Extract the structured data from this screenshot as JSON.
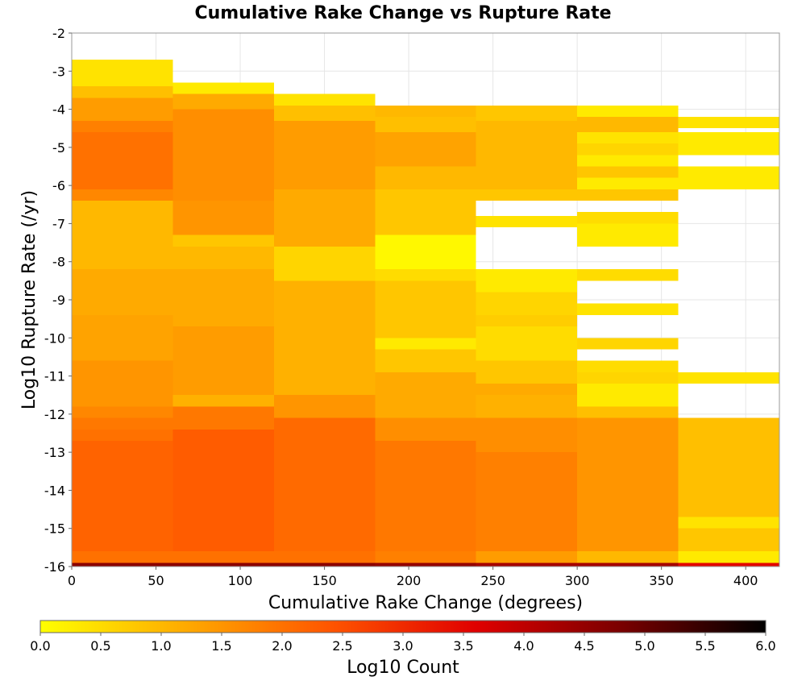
{
  "chart_data": {
    "type": "heatmap",
    "title": "Cumulative Rake Change vs Rupture Rate",
    "xlabel": "Cumulative Rake Change (degrees)",
    "ylabel": "Log10 Rupture Rate (/yr)",
    "xlim": [
      0,
      420
    ],
    "ylim": [
      -16,
      -2
    ],
    "x_ticks": [
      "0",
      "50",
      "100",
      "150",
      "200",
      "250",
      "300",
      "350",
      "400"
    ],
    "x_tick_values": [
      0,
      50,
      100,
      150,
      200,
      250,
      300,
      350,
      400
    ],
    "y_ticks": [
      "-2",
      "-3",
      "-4",
      "-5",
      "-6",
      "-7",
      "-8",
      "-9",
      "-10",
      "-11",
      "-12",
      "-13",
      "-14",
      "-15",
      "-16"
    ],
    "y_tick_values": [
      -2,
      -3,
      -4,
      -5,
      -6,
      -7,
      -8,
      -9,
      -10,
      -11,
      -12,
      -13,
      -14,
      -15,
      -16
    ],
    "grid": true,
    "x_bin_width": 60,
    "y_bin_height": 0.3,
    "colorbar": {
      "label": "Log10 Count",
      "range": [
        0,
        6
      ],
      "ticks": [
        "0.0",
        "0.5",
        "1.0",
        "1.5",
        "2.0",
        "2.5",
        "3.0",
        "3.5",
        "4.0",
        "4.5",
        "5.0",
        "5.5",
        "6.0"
      ],
      "tick_values": [
        0,
        0.5,
        1,
        1.5,
        2,
        2.5,
        3,
        3.5,
        4,
        4.5,
        5,
        5.5,
        6
      ],
      "stops": [
        "#ffff00",
        "#ffaa00",
        "#ff5500",
        "#e00000",
        "#7a0000",
        "#000000"
      ]
    },
    "columns": [
      {
        "x_range": [
          0,
          60
        ],
        "bins": [
          {
            "y": [
              -16,
              -15.9
            ],
            "v": 4.6
          },
          {
            "y": [
              -15.9,
              -15.6
            ],
            "v": 2.0
          },
          {
            "y": [
              -15.6,
              -12.7
            ],
            "v": 2.2
          },
          {
            "y": [
              -12.7,
              -12.4
            ],
            "v": 2.0
          },
          {
            "y": [
              -12.4,
              -12.1
            ],
            "v": 1.9
          },
          {
            "y": [
              -12.1,
              -11.8
            ],
            "v": 1.7
          },
          {
            "y": [
              -11.8,
              -10.6
            ],
            "v": 1.5
          },
          {
            "y": [
              -10.6,
              -9.4
            ],
            "v": 1.3
          },
          {
            "y": [
              -9.4,
              -8.2
            ],
            "v": 1.2
          },
          {
            "y": [
              -8.2,
              -6.4
            ],
            "v": 1.0
          },
          {
            "y": [
              -6.4,
              -6.1
            ],
            "v": 1.7
          },
          {
            "y": [
              -6.1,
              -4.6
            ],
            "v": 2.0
          },
          {
            "y": [
              -4.6,
              -4.3
            ],
            "v": 1.8
          },
          {
            "y": [
              -4.3,
              -3.7
            ],
            "v": 1.4
          },
          {
            "y": [
              -3.7,
              -3.4
            ],
            "v": 0.9
          },
          {
            "y": [
              -3.4,
              -2.7
            ],
            "v": 0.4
          }
        ]
      },
      {
        "x_range": [
          60,
          120
        ],
        "bins": [
          {
            "y": [
              -16,
              -15.9
            ],
            "v": 4.6
          },
          {
            "y": [
              -15.9,
              -15.6
            ],
            "v": 2.0
          },
          {
            "y": [
              -15.6,
              -12.4
            ],
            "v": 2.3
          },
          {
            "y": [
              -12.4,
              -11.8
            ],
            "v": 1.9
          },
          {
            "y": [
              -11.8,
              -11.5
            ],
            "v": 1.1
          },
          {
            "y": [
              -11.5,
              -9.7
            ],
            "v": 1.4
          },
          {
            "y": [
              -9.7,
              -8.2
            ],
            "v": 1.2
          },
          {
            "y": [
              -8.2,
              -7.6
            ],
            "v": 1.0
          },
          {
            "y": [
              -7.6,
              -7.3
            ],
            "v": 0.8
          },
          {
            "y": [
              -7.3,
              -6.4
            ],
            "v": 1.5
          },
          {
            "y": [
              -6.4,
              -4.0
            ],
            "v": 1.6
          },
          {
            "y": [
              -4.0,
              -3.6
            ],
            "v": 1.2
          },
          {
            "y": [
              -3.6,
              -3.3
            ],
            "v": 0.3
          }
        ]
      },
      {
        "x_range": [
          120,
          180
        ],
        "bins": [
          {
            "y": [
              -16,
              -15.9
            ],
            "v": 4.6
          },
          {
            "y": [
              -15.9,
              -15.6
            ],
            "v": 2.0
          },
          {
            "y": [
              -15.6,
              -12.1
            ],
            "v": 2.1
          },
          {
            "y": [
              -12.1,
              -11.5
            ],
            "v": 1.5
          },
          {
            "y": [
              -11.5,
              -8.5
            ],
            "v": 1.1
          },
          {
            "y": [
              -8.5,
              -7.6
            ],
            "v": 0.6
          },
          {
            "y": [
              -7.6,
              -6.1
            ],
            "v": 1.2
          },
          {
            "y": [
              -6.1,
              -4.3
            ],
            "v": 1.4
          },
          {
            "y": [
              -4.3,
              -3.9
            ],
            "v": 0.9
          },
          {
            "y": [
              -3.9,
              -3.6
            ],
            "v": 0.4
          }
        ]
      },
      {
        "x_range": [
          180,
          240
        ],
        "bins": [
          {
            "y": [
              -16,
              -15.9
            ],
            "v": 4.5
          },
          {
            "y": [
              -15.9,
              -15.6
            ],
            "v": 1.8
          },
          {
            "y": [
              -15.6,
              -12.7
            ],
            "v": 1.9
          },
          {
            "y": [
              -12.7,
              -12.1
            ],
            "v": 1.6
          },
          {
            "y": [
              -12.1,
              -10.9
            ],
            "v": 1.2
          },
          {
            "y": [
              -10.9,
              -10.3
            ],
            "v": 0.8
          },
          {
            "y": [
              -10.3,
              -10.0
            ],
            "v": 0.3
          },
          {
            "y": [
              -10.0,
              -8.5
            ],
            "v": 0.8
          },
          {
            "y": [
              -8.5,
              -8.2
            ],
            "v": 0.5
          },
          {
            "y": [
              -8.2,
              -7.3
            ],
            "v": 0.1
          },
          {
            "y": [
              -7.3,
              -6.1
            ],
            "v": 0.8
          },
          {
            "y": [
              -6.1,
              -5.5
            ],
            "v": 1.0
          },
          {
            "y": [
              -5.5,
              -4.6
            ],
            "v": 1.3
          },
          {
            "y": [
              -4.6,
              -4.2
            ],
            "v": 0.9
          },
          {
            "y": [
              -4.2,
              -3.9
            ],
            "v": 1.0
          }
        ]
      },
      {
        "x_range": [
          240,
          300
        ],
        "bins": [
          {
            "y": [
              -16,
              -15.9
            ],
            "v": 4.3
          },
          {
            "y": [
              -15.9,
              -15.6
            ],
            "v": 1.4
          },
          {
            "y": [
              -15.6,
              -13.0
            ],
            "v": 1.8
          },
          {
            "y": [
              -13.0,
              -12.1
            ],
            "v": 1.6
          },
          {
            "y": [
              -12.1,
              -11.5
            ],
            "v": 1.1
          },
          {
            "y": [
              -11.5,
              -11.2
            ],
            "v": 1.2
          },
          {
            "y": [
              -11.2,
              -10.6
            ],
            "v": 0.8
          },
          {
            "y": [
              -10.6,
              -9.7
            ],
            "v": 0.5
          },
          {
            "y": [
              -9.7,
              -9.4
            ],
            "v": 0.7
          },
          {
            "y": [
              -9.4,
              -8.8
            ],
            "v": 0.6
          },
          {
            "y": [
              -8.8,
              -8.2
            ],
            "v": 0.3
          },
          {
            "y": [
              -7.1,
              -6.8
            ],
            "v": 0.4
          },
          {
            "y": [
              -6.4,
              -6.1
            ],
            "v": 0.8
          },
          {
            "y": [
              -6.1,
              -4.3
            ],
            "v": 1.0
          },
          {
            "y": [
              -4.3,
              -3.9
            ],
            "v": 0.8
          }
        ]
      },
      {
        "x_range": [
          300,
          360
        ],
        "bins": [
          {
            "y": [
              -16,
              -15.9
            ],
            "v": 4.3
          },
          {
            "y": [
              -15.9,
              -15.6
            ],
            "v": 1.0
          },
          {
            "y": [
              -15.6,
              -12.1
            ],
            "v": 1.5
          },
          {
            "y": [
              -12.1,
              -11.8
            ],
            "v": 0.9
          },
          {
            "y": [
              -11.8,
              -11.2
            ],
            "v": 0.3
          },
          {
            "y": [
              -11.2,
              -10.9
            ],
            "v": 0.6
          },
          {
            "y": [
              -10.9,
              -10.6
            ],
            "v": 0.5
          },
          {
            "y": [
              -10.3,
              -10.0
            ],
            "v": 0.6
          },
          {
            "y": [
              -9.4,
              -9.1
            ],
            "v": 0.4
          },
          {
            "y": [
              -8.5,
              -8.2
            ],
            "v": 0.5
          },
          {
            "y": [
              -7.6,
              -7.0
            ],
            "v": 0.3
          },
          {
            "y": [
              -7.0,
              -6.7
            ],
            "v": 0.5
          },
          {
            "y": [
              -6.4,
              -6.1
            ],
            "v": 0.8
          },
          {
            "y": [
              -6.1,
              -5.8
            ],
            "v": 0.3
          },
          {
            "y": [
              -5.8,
              -5.5
            ],
            "v": 0.8
          },
          {
            "y": [
              -5.5,
              -5.2
            ],
            "v": 0.3
          },
          {
            "y": [
              -5.2,
              -4.9
            ],
            "v": 0.6
          },
          {
            "y": [
              -4.9,
              -4.6
            ],
            "v": 0.4
          },
          {
            "y": [
              -4.6,
              -4.2
            ],
            "v": 1.0
          },
          {
            "y": [
              -4.2,
              -3.9
            ],
            "v": 0.3
          }
        ]
      },
      {
        "x_range": [
          360,
          420
        ],
        "bins": [
          {
            "y": [
              -16,
              -15.9
            ],
            "v": 3.5
          },
          {
            "y": [
              -15.9,
              -15.6
            ],
            "v": 0.3
          },
          {
            "y": [
              -15.6,
              -15.0
            ],
            "v": 0.8
          },
          {
            "y": [
              -15.0,
              -14.7
            ],
            "v": 0.4
          },
          {
            "y": [
              -14.7,
              -12.1
            ],
            "v": 0.9
          },
          {
            "y": [
              -11.2,
              -10.9
            ],
            "v": 0.4
          },
          {
            "y": [
              -6.1,
              -5.5
            ],
            "v": 0.3
          },
          {
            "y": [
              -5.2,
              -4.6
            ],
            "v": 0.3
          },
          {
            "y": [
              -4.5,
              -4.2
            ],
            "v": 0.4
          }
        ]
      }
    ]
  }
}
